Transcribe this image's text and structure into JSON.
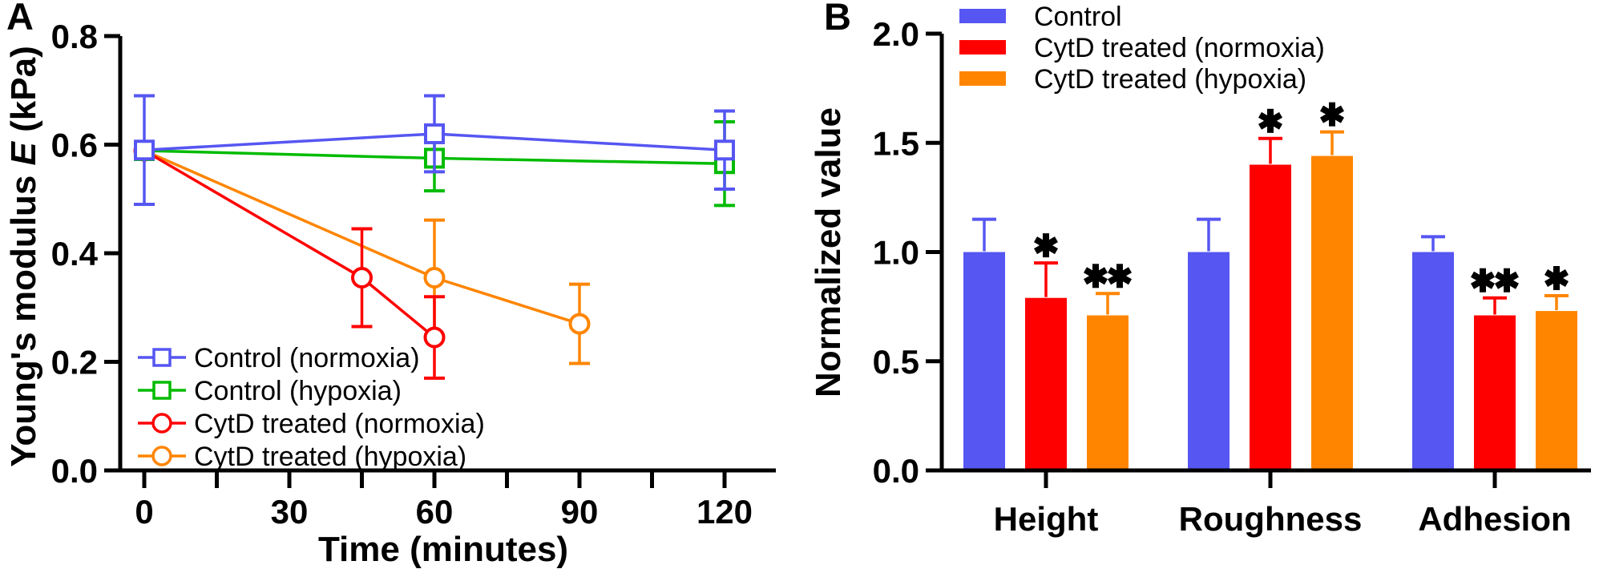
{
  "figure": {
    "panel_a": {
      "label": "A",
      "y_axis_title_prefix": "Young's modulus ",
      "y_axis_title_italic": "E",
      "y_axis_title_suffix": " (kPa)"
    },
    "panel_b": {
      "label": "B"
    },
    "background": "#FFFFFF",
    "axis_color": "#000000"
  },
  "chart_data": [
    {
      "panel": "A",
      "type": "line",
      "xlabel": "Time (minutes)",
      "ylabel": "Young's modulus E (kPa)",
      "xlim": [
        -5,
        131
      ],
      "ylim": [
        0,
        0.8
      ],
      "x_ticks": [
        0,
        30,
        60,
        90,
        120
      ],
      "x_tick_labels": [
        "0",
        "30",
        "60",
        "90",
        "120"
      ],
      "x_minor_ticks": [
        15,
        45,
        75,
        105
      ],
      "y_ticks": [
        0,
        0.2,
        0.4,
        0.6,
        0.8
      ],
      "y_tick_labels": [
        "0.0",
        "0.2",
        "0.4",
        "0.6",
        "0.8"
      ],
      "grid": false,
      "legend_position": "inside-bottom-left",
      "series": [
        {
          "name": "Control (normoxia)",
          "color": "#5656F2",
          "marker": "open-square",
          "points": [
            {
              "x": 0,
              "y": 0.59,
              "err": 0.1
            },
            {
              "x": 60,
              "y": 0.62,
              "err": 0.07
            },
            {
              "x": 120,
              "y": 0.59,
              "err": 0.072
            }
          ]
        },
        {
          "name": "Control (hypoxia)",
          "color": "#00BB00",
          "marker": "open-square",
          "points": [
            {
              "x": 0,
              "y": 0.589,
              "err": 0
            },
            {
              "x": 60,
              "y": 0.575,
              "err": 0.06
            },
            {
              "x": 120,
              "y": 0.565,
              "err": 0.077
            }
          ]
        },
        {
          "name": "CytD treated (normoxia)",
          "color": "#FF0000",
          "marker": "open-circle",
          "points": [
            {
              "x": 0,
              "y": 0.589,
              "err": 0
            },
            {
              "x": 45,
              "y": 0.355,
              "err": 0.09
            },
            {
              "x": 60,
              "y": 0.245,
              "err": 0.075
            }
          ]
        },
        {
          "name": "CytD treated (hypoxia)",
          "color": "#FF8500",
          "marker": "open-circle",
          "points": [
            {
              "x": 0,
              "y": 0.589,
              "err": 0
            },
            {
              "x": 60,
              "y": 0.355,
              "err": 0.106
            },
            {
              "x": 90,
              "y": 0.27,
              "err": 0.073
            }
          ]
        }
      ]
    },
    {
      "panel": "B",
      "type": "bar",
      "ylabel": "Normalized value",
      "ylim": [
        0,
        2
      ],
      "y_ticks": [
        0,
        0.5,
        1,
        1.5,
        2
      ],
      "y_tick_labels": [
        "0.0",
        "0.5",
        "1.0",
        "1.5",
        "2.0"
      ],
      "categories": [
        "Height",
        "Roughness",
        "Adhesion"
      ],
      "grid": false,
      "legend_position": "top-left",
      "series": [
        {
          "name": "Control",
          "color": "#5656F2",
          "values": [
            1.0,
            1.0,
            1.0
          ],
          "errors": [
            0.15,
            0.15,
            0.07
          ],
          "significance": [
            "",
            "",
            ""
          ]
        },
        {
          "name": "CytD treated (normoxia)",
          "color": "#FF0000",
          "values": [
            0.79,
            1.4,
            0.71
          ],
          "errors": [
            0.16,
            0.12,
            0.08
          ],
          "significance": [
            "*",
            "*",
            "**"
          ]
        },
        {
          "name": "CytD treated (hypoxia)",
          "color": "#FF8500",
          "values": [
            0.71,
            1.44,
            0.73
          ],
          "errors": [
            0.1,
            0.11,
            0.07
          ],
          "significance": [
            "**",
            "*",
            "*"
          ]
        }
      ]
    }
  ]
}
